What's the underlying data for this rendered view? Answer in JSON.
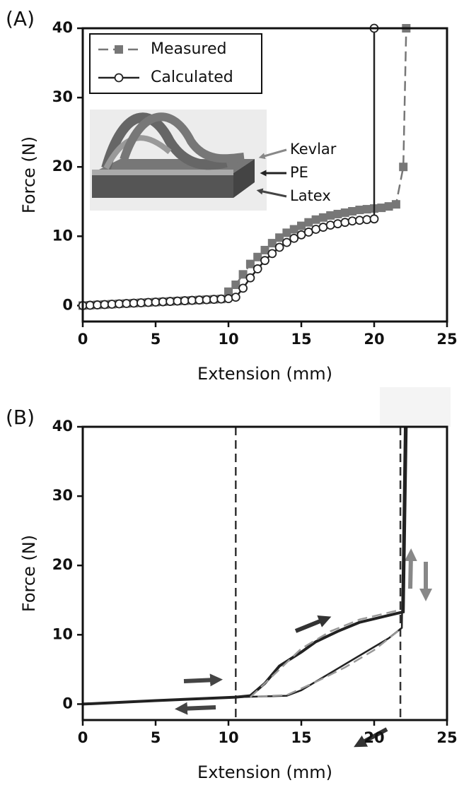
{
  "chart_data": [
    {
      "type": "line",
      "panel_label": "(A)",
      "xlabel": "Extension (mm)",
      "ylabel": "Force (N)",
      "xlim": [
        0,
        25
      ],
      "ylim": [
        -2.3,
        40
      ],
      "xticks": [
        0,
        5,
        10,
        15,
        20,
        25
      ],
      "yticks": [
        0,
        10,
        20,
        30,
        40
      ],
      "legend": "upper left",
      "inset_labels": [
        "Kevlar",
        "PE",
        "Latex"
      ],
      "series": [
        {
          "name": "Measured",
          "color": "#777777",
          "marker": "square",
          "dash": true,
          "width": 2.5,
          "x": [
            0,
            0.5,
            1,
            1.5,
            2,
            2.5,
            3,
            3.5,
            4,
            4.5,
            5,
            5.5,
            6,
            6.5,
            7,
            7.5,
            8,
            8.5,
            9,
            9.5,
            10,
            10.5,
            11,
            11.5,
            12,
            12.5,
            13,
            13.5,
            14,
            14.5,
            15,
            15.5,
            16,
            16.5,
            17,
            17.5,
            18,
            18.5,
            19,
            19.5,
            20,
            20.5,
            21,
            21.5,
            22,
            22.2
          ],
          "values": [
            0,
            0.05,
            0.1,
            0.15,
            0.2,
            0.25,
            0.3,
            0.35,
            0.4,
            0.45,
            0.5,
            0.55,
            0.6,
            0.65,
            0.7,
            0.75,
            0.8,
            0.85,
            0.9,
            0.95,
            2,
            3,
            4.5,
            6,
            7,
            8,
            9,
            9.8,
            10.5,
            11,
            11.5,
            12,
            12.4,
            12.7,
            13,
            13.2,
            13.4,
            13.6,
            13.8,
            13.9,
            14,
            14.1,
            14.3,
            14.6,
            20,
            40
          ]
        },
        {
          "name": "Calculated",
          "color": "#222222",
          "marker": "circle",
          "dash": false,
          "width": 2.5,
          "x": [
            0,
            0.5,
            1,
            1.5,
            2,
            2.5,
            3,
            3.5,
            4,
            4.5,
            5,
            5.5,
            6,
            6.5,
            7,
            7.5,
            8,
            8.5,
            9,
            9.5,
            10,
            10.5,
            11,
            11.5,
            12,
            12.5,
            13,
            13.5,
            14,
            14.5,
            15,
            15.5,
            16,
            16.5,
            17,
            17.5,
            18,
            18.5,
            19,
            19.5,
            20,
            20
          ],
          "values": [
            0,
            0.05,
            0.1,
            0.15,
            0.2,
            0.25,
            0.3,
            0.35,
            0.4,
            0.45,
            0.5,
            0.55,
            0.6,
            0.65,
            0.7,
            0.75,
            0.8,
            0.85,
            0.9,
            0.95,
            1,
            1.2,
            2.5,
            4,
            5.3,
            6.5,
            7.5,
            8.4,
            9.1,
            9.7,
            10.2,
            10.6,
            11,
            11.3,
            11.6,
            11.8,
            12,
            12.2,
            12.3,
            12.4,
            12.5,
            40
          ]
        }
      ]
    },
    {
      "type": "line",
      "panel_label": "(B)",
      "xlabel": "Extension (mm)",
      "ylabel": "Force (N)",
      "xlim": [
        0,
        25
      ],
      "ylim": [
        -2.3,
        40
      ],
      "xticks": [
        0,
        5,
        10,
        15,
        20,
        25
      ],
      "yticks": [
        0,
        10,
        20,
        30,
        40
      ],
      "vlines": [
        10.5,
        21.8
      ],
      "series": [
        {
          "color": "#222222",
          "marker": "none",
          "dash": false,
          "width": 4,
          "x": [
            0,
            5,
            10.5,
            11.5,
            12.5,
            13.5,
            15,
            16,
            17.5,
            19,
            21,
            22,
            22.2
          ],
          "values": [
            0,
            0.5,
            1,
            1.2,
            3,
            5.5,
            7.5,
            9,
            10.5,
            11.8,
            12.8,
            13.3,
            40
          ]
        },
        {
          "color": "#222222",
          "marker": "none",
          "dash": false,
          "width": 2.5,
          "x": [
            22.1,
            21.9,
            21,
            19,
            17,
            15,
            14,
            10.5,
            5,
            0
          ],
          "values": [
            40,
            11,
            9.5,
            7,
            4.5,
            2,
            1.2,
            1,
            0.5,
            0
          ]
        },
        {
          "color": "#999999",
          "marker": "none",
          "dash": true,
          "width": 2.5,
          "x": [
            11.5,
            13,
            15,
            17,
            19,
            21.8
          ],
          "values": [
            1,
            4,
            8,
            10.5,
            12.2,
            13.6
          ]
        },
        {
          "color": "#999999",
          "marker": "none",
          "dash": true,
          "width": 2.5,
          "x": [
            12,
            14,
            16,
            18,
            20,
            21.8
          ],
          "values": [
            1.1,
            1.3,
            3.2,
            5.3,
            7.8,
            10.8
          ]
        }
      ]
    }
  ]
}
